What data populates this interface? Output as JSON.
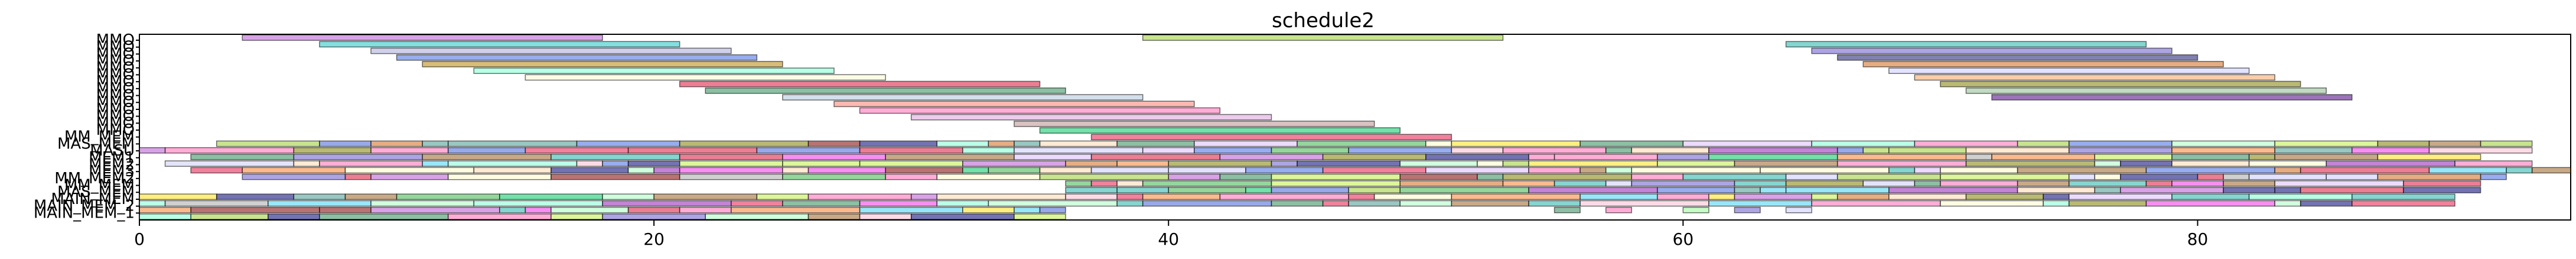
{
  "chart_data": {
    "type": "bar",
    "orientation": "horizontal-gantt",
    "title": "schedule2",
    "xlabel": "",
    "ylabel": "",
    "xlim": [
      0,
      94.5
    ],
    "xticks": [
      0,
      20,
      40,
      60,
      80
    ],
    "grid": false,
    "legend": "none",
    "lanes": [
      "MMO",
      "MMO",
      "MMO",
      "MMO",
      "MMO",
      "MMO",
      "MMO",
      "MMO",
      "MMO",
      "MMO",
      "MMO",
      "MMO",
      "MMO",
      "MMO",
      "MM_MEM",
      "MAS_MEM",
      "MASU",
      "MEM1",
      "MEM2",
      "MEM3",
      "MM_MEM2",
      "MM_MEM",
      "MAS_MEM",
      "MAIN_MEM",
      "MAIN_MEM_2",
      "MAIN_MEM_1"
    ],
    "tasks": [
      {
        "lane": 0,
        "start": 39,
        "end": 53,
        "color": "#9acd32"
      },
      {
        "lane": 0,
        "start": 4,
        "end": 18,
        "color": "#ba55d3"
      },
      {
        "lane": 1,
        "start": 7,
        "end": 21,
        "color": "#20c4c4"
      },
      {
        "lane": 1,
        "start": 64,
        "end": 78,
        "color": "#20b2aa"
      },
      {
        "lane": 2,
        "start": 9,
        "end": 23,
        "color": "#a9a9d9"
      },
      {
        "lane": 2,
        "start": 65,
        "end": 79,
        "color": "#6a5acd"
      },
      {
        "lane": 3,
        "start": 10,
        "end": 24,
        "color": "#4169e1"
      },
      {
        "lane": 3,
        "start": 66,
        "end": 80,
        "color": "#191970"
      },
      {
        "lane": 4,
        "start": 11,
        "end": 25,
        "color": "#b8860b"
      },
      {
        "lane": 4,
        "start": 67,
        "end": 81,
        "color": "#d2691e"
      },
      {
        "lane": 5,
        "start": 13,
        "end": 27,
        "color": "#7fffd4"
      },
      {
        "lane": 5,
        "start": 68,
        "end": 82,
        "color": "#ccccff"
      },
      {
        "lane": 6,
        "start": 15,
        "end": 29,
        "color": "#fafad2"
      },
      {
        "lane": 6,
        "start": 69,
        "end": 83,
        "color": "#f4a460"
      },
      {
        "lane": 7,
        "start": 21,
        "end": 35,
        "color": "#dc143c"
      },
      {
        "lane": 7,
        "start": 70,
        "end": 84,
        "color": "#808000"
      },
      {
        "lane": 8,
        "start": 22,
        "end": 36,
        "color": "#2e8b57"
      },
      {
        "lane": 8,
        "start": 71,
        "end": 85,
        "color": "#8fbc8f"
      },
      {
        "lane": 9,
        "start": 25,
        "end": 39,
        "color": "#b0c4de"
      },
      {
        "lane": 9,
        "start": 72,
        "end": 86,
        "color": "#4b0082"
      },
      {
        "lane": 10,
        "start": 27,
        "end": 41,
        "color": "#fa8072"
      },
      {
        "lane": 11,
        "start": 28,
        "end": 42,
        "color": "#ff69b4"
      },
      {
        "lane": 12,
        "start": 30,
        "end": 44,
        "color": "#dda0dd"
      },
      {
        "lane": 13,
        "start": 34,
        "end": 48,
        "color": "#bc8f8f"
      },
      {
        "lane": 14,
        "start": 35,
        "end": 49,
        "color": "#00c864"
      },
      {
        "lane": 15,
        "start": 37,
        "end": 51,
        "color": "#e6194b"
      }
    ],
    "dense_lanes": [
      {
        "lane": 16,
        "start": 3,
        "end": 93,
        "seed": 11
      },
      {
        "lane": 17,
        "start": 0,
        "end": 93,
        "seed": 23
      },
      {
        "lane": 18,
        "start": 2,
        "end": 91,
        "seed": 37
      },
      {
        "lane": 19,
        "start": 1,
        "end": 93,
        "seed": 41
      },
      {
        "lane": 20,
        "start": 2,
        "end": 94.5,
        "seed": 53
      },
      {
        "lane": 21,
        "start": 4,
        "end": 92,
        "seed": 61
      },
      {
        "lane": 22,
        "start": 36,
        "end": 91,
        "seed": 71
      },
      {
        "lane": 23,
        "start": 36,
        "end": 91,
        "seed": 79
      },
      {
        "lane": 24,
        "start": 0,
        "end": 90,
        "seed": 83
      },
      {
        "lane": 25,
        "start": 0,
        "end": 90,
        "seed": 97
      },
      {
        "lane": 26,
        "start": 0,
        "end": 36,
        "seed": 101
      },
      {
        "lane": 27,
        "start": 0,
        "end": 36,
        "seed": 103
      }
    ],
    "sparse_segments": [
      {
        "lane": 26,
        "start": 55,
        "end": 56,
        "color": "#2e8b57"
      },
      {
        "lane": 26,
        "start": 57,
        "end": 58,
        "color": "#ff69b4"
      },
      {
        "lane": 26,
        "start": 60,
        "end": 61,
        "color": "#98fb98"
      },
      {
        "lane": 26,
        "start": 62,
        "end": 63,
        "color": "#6a5acd"
      },
      {
        "lane": 26,
        "start": 64,
        "end": 65,
        "color": "#ccccff"
      }
    ]
  }
}
